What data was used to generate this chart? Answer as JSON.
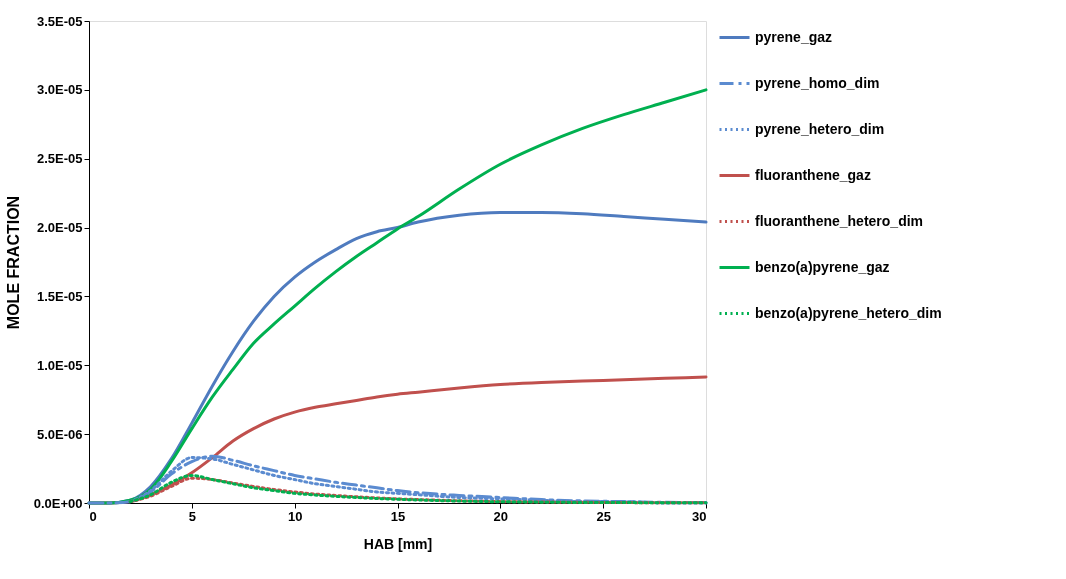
{
  "chart_data": {
    "type": "line",
    "xlabel": "HAB [mm]",
    "ylabel": "MOLE FRACTION",
    "xlim": [
      0,
      30
    ],
    "xticks": [
      0,
      5,
      10,
      15,
      20,
      25,
      30
    ],
    "ylim": [
      0,
      3.5e-05
    ],
    "yticks": [
      {
        "value": 0,
        "label": "0.0E+00"
      },
      {
        "value": 5e-06,
        "label": "5.0E-06"
      },
      {
        "value": 1e-05,
        "label": "1.0E-05"
      },
      {
        "value": 1.5e-05,
        "label": "1.5E-05"
      },
      {
        "value": 2e-05,
        "label": "2.0E-05"
      },
      {
        "value": 2.5e-05,
        "label": "2.5E-05"
      },
      {
        "value": 3e-05,
        "label": "3.0E-05"
      },
      {
        "value": 3.5e-05,
        "label": "3.5E-05"
      }
    ],
    "grid": false,
    "legend": "right",
    "marker": "none",
    "x": [
      0,
      1,
      2,
      3,
      4,
      5,
      6,
      7,
      8,
      9,
      10,
      11,
      12,
      13,
      14,
      15,
      16,
      18,
      20,
      22,
      24,
      26,
      28,
      30
    ],
    "series": [
      {
        "name": "pyrene_gaz",
        "color": "#4f7bbf",
        "line_style": "solid",
        "values": [
          0,
          0,
          2e-07,
          1.2e-06,
          3.2e-06,
          5.8e-06,
          8.5e-06,
          1.1e-05,
          1.32e-05,
          1.5e-05,
          1.64e-05,
          1.75e-05,
          1.84e-05,
          1.92e-05,
          1.97e-05,
          2e-05,
          2.04e-05,
          2.09e-05,
          2.11e-05,
          2.11e-05,
          2.1e-05,
          2.08e-05,
          2.06e-05,
          2.04e-05
        ]
      },
      {
        "name": "pyrene_homo_dim",
        "color": "#5b8bd0",
        "line_style": "dashed",
        "values": [
          0,
          0,
          1e-07,
          8e-07,
          2.1e-06,
          3e-06,
          3.4e-06,
          3.1e-06,
          2.7e-06,
          2.35e-06,
          2e-06,
          1.75e-06,
          1.5e-06,
          1.3e-06,
          1.1e-06,
          9e-07,
          7.5e-07,
          5.5e-07,
          4e-07,
          2.5e-07,
          1.5e-07,
          1e-07,
          5e-08,
          3e-08
        ]
      },
      {
        "name": "pyrene_hetero_dim",
        "color": "#5b8bd0",
        "line_style": "dotted",
        "values": [
          null,
          null,
          1e-07,
          9e-07,
          2.3e-06,
          3.3e-06,
          3.2e-06,
          2.8e-06,
          2.4e-06,
          2e-06,
          1.7e-06,
          1.4e-06,
          1.2e-06,
          1e-06,
          8e-07,
          7e-07,
          6e-07,
          4e-07,
          3e-07,
          2e-07,
          1e-07,
          1e-07,
          0,
          0
        ]
      },
      {
        "name": "fluoranthene_gaz",
        "color": "#c0504d",
        "line_style": "solid",
        "values": [
          0,
          0,
          1e-07,
          6e-07,
          1.3e-06,
          2.2e-06,
          3.3e-06,
          4.5e-06,
          5.4e-06,
          6.1e-06,
          6.6e-06,
          6.95e-06,
          7.2e-06,
          7.45e-06,
          7.7e-06,
          7.9e-06,
          8.05e-06,
          8.35e-06,
          8.6e-06,
          8.75e-06,
          8.85e-06,
          8.95e-06,
          9.05e-06,
          9.15e-06
        ]
      },
      {
        "name": "fluoranthene_hetero_dim",
        "color": "#c0504d",
        "line_style": "dotted",
        "values": [
          null,
          null,
          1e-07,
          5e-07,
          1.2e-06,
          1.8e-06,
          1.7e-06,
          1.45e-06,
          1.2e-06,
          9.8e-07,
          8e-07,
          6.5e-07,
          5.5e-07,
          4.5e-07,
          3.7e-07,
          3e-07,
          2.5e-07,
          1.6e-07,
          1e-07,
          7e-08,
          5e-08,
          3e-08,
          2e-08,
          1e-08
        ]
      },
      {
        "name": "benzo(a)pyrene_gaz",
        "color": "#00b050",
        "line_style": "solid",
        "values": [
          0,
          0,
          2e-07,
          1e-06,
          3e-06,
          5.4e-06,
          7.7e-06,
          9.7e-06,
          1.16e-05,
          1.3e-05,
          1.43e-05,
          1.56e-05,
          1.68e-05,
          1.79e-05,
          1.89e-05,
          1.99e-05,
          2.08e-05,
          2.28e-05,
          2.46e-05,
          2.6e-05,
          2.72e-05,
          2.82e-05,
          2.91e-05,
          3e-05
        ]
      },
      {
        "name": "benzo(a)pyrene_hetero_dim",
        "color": "#00b050",
        "line_style": "dotted",
        "values": [
          null,
          null,
          1e-07,
          6e-07,
          1.5e-06,
          2e-06,
          1.7e-06,
          1.4e-06,
          1.1e-06,
          9e-07,
          7e-07,
          5.8e-07,
          4.8e-07,
          4e-07,
          3.3e-07,
          2.7e-07,
          2.2e-07,
          1.4e-07,
          9e-08,
          6e-08,
          4e-08,
          3e-08,
          2e-08,
          1e-08
        ]
      }
    ]
  }
}
